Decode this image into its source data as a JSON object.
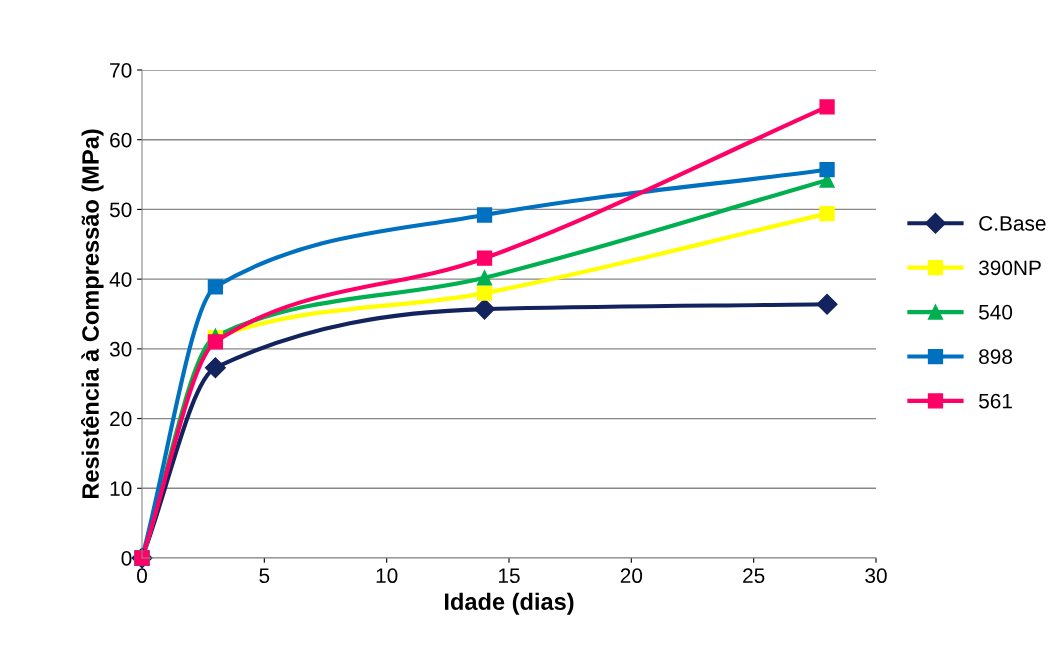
{
  "chart_data": {
    "type": "line",
    "xlabel": "Idade (dias)",
    "ylabel": "Resistência à Compressão (MPa)",
    "x": [
      0,
      3,
      14,
      28
    ],
    "xlim": [
      0,
      30
    ],
    "xticks": [
      0,
      5,
      10,
      15,
      20,
      25,
      30
    ],
    "ylim": [
      0,
      70
    ],
    "yticks": [
      0,
      10,
      20,
      30,
      40,
      50,
      60,
      70
    ],
    "grid": "y",
    "legend": "right",
    "line_style": "solid",
    "series": [
      {
        "name": "C.Base",
        "color": "#13235e",
        "marker": "diamond",
        "values": [
          0,
          27.3,
          35.7,
          36.4
        ]
      },
      {
        "name": "390NP",
        "color": "#ffff00",
        "marker": "square",
        "values": [
          0,
          31.6,
          38.0,
          49.4
        ]
      },
      {
        "name": "540",
        "color": "#00b050",
        "marker": "triangle",
        "values": [
          0,
          31.8,
          40.2,
          54.2
        ]
      },
      {
        "name": "898",
        "color": "#0070c0",
        "marker": "square",
        "values": [
          0,
          38.9,
          49.2,
          55.7
        ]
      },
      {
        "name": "561",
        "color": "#ff0066",
        "marker": "square",
        "values": [
          0,
          31.0,
          43.0,
          64.7
        ]
      }
    ]
  }
}
